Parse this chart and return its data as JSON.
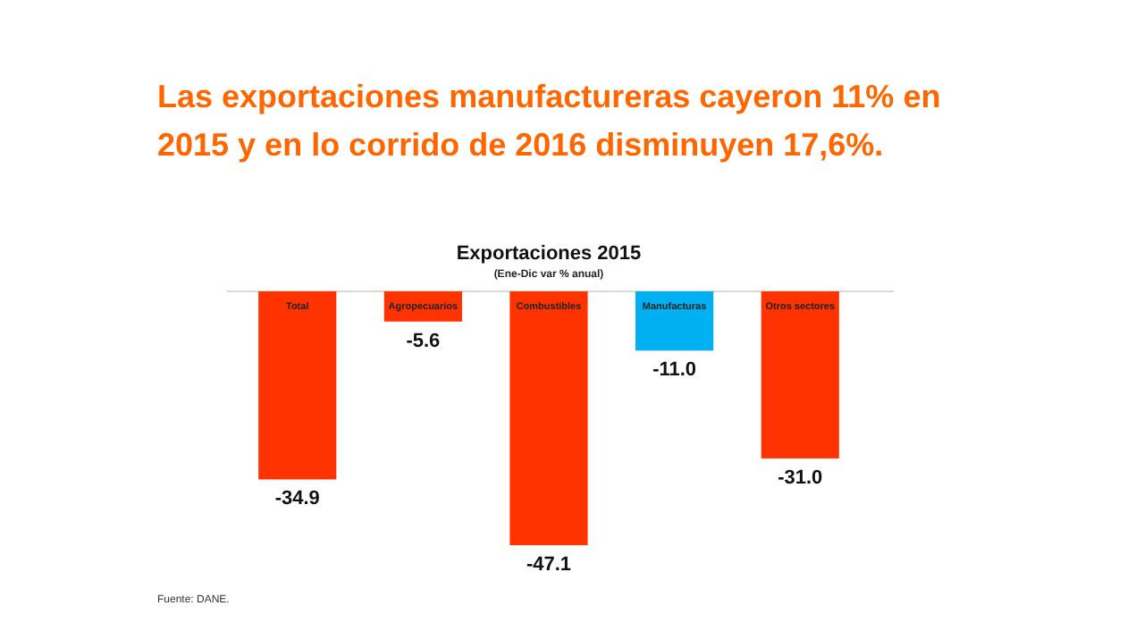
{
  "chart_data": {
    "type": "bar",
    "title": "Exportaciones 2015",
    "subtitle": "(Ene-Dic var % anual)",
    "categories": [
      "Total",
      "Agropecuarios",
      "Combustibles",
      "Manufacturas",
      "Otros sectores"
    ],
    "values": [
      -34.9,
      -5.6,
      -47.1,
      -11.0,
      -31.0
    ],
    "colors": [
      "#ff3300",
      "#ff3300",
      "#ff3300",
      "#00b0f0",
      "#ff3300"
    ],
    "value_labels": [
      "-34.9",
      "-5.6",
      "-47.1",
      "-11.0",
      "-31.0"
    ],
    "annotations": [
      "Las exportaciones manufactureras cayeron 11% en 2015 y en lo corrido de 2016 disminuyen 17,6%.",
      "Fuente: DANE."
    ]
  }
}
